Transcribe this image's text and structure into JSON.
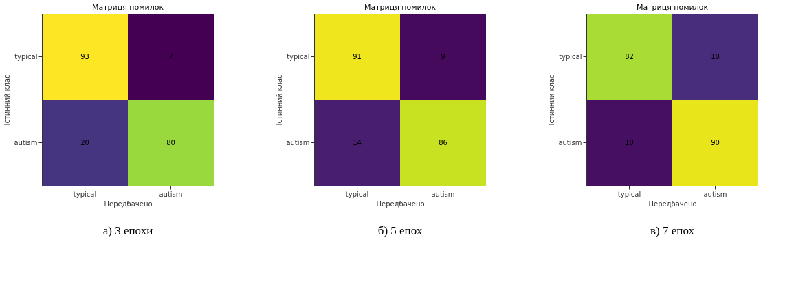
{
  "chart_data": [
    {
      "type": "heatmap",
      "title": "Матриця помилок",
      "xlabel": "Передбачено",
      "ylabel": "Істинний клас",
      "categories": [
        "typical",
        "autism"
      ],
      "y_categories": [
        "typical",
        "autism"
      ],
      "cells": [
        [
          93,
          7
        ],
        [
          20,
          80
        ]
      ],
      "data_labels": true,
      "annotations": [
        "а) 3 епохи"
      ]
    },
    {
      "type": "heatmap",
      "title": "Матриця помилок",
      "xlabel": "Передбачено",
      "ylabel": "Істинний клас",
      "categories": [
        "typical",
        "autism"
      ],
      "y_categories": [
        "typical",
        "autism"
      ],
      "cells": [
        [
          91,
          9
        ],
        [
          14,
          86
        ]
      ],
      "data_labels": true,
      "annotations": [
        "б) 5 епох"
      ]
    },
    {
      "type": "heatmap",
      "title": "Матриця помилок",
      "xlabel": "Передбачено",
      "ylabel": "Істинний клас",
      "categories": [
        "typical",
        "autism"
      ],
      "y_categories": [
        "typical",
        "autism"
      ],
      "cells": [
        [
          82,
          18
        ],
        [
          10,
          90
        ]
      ],
      "data_labels": true,
      "annotations": [
        "в) 7 епох"
      ]
    }
  ]
}
